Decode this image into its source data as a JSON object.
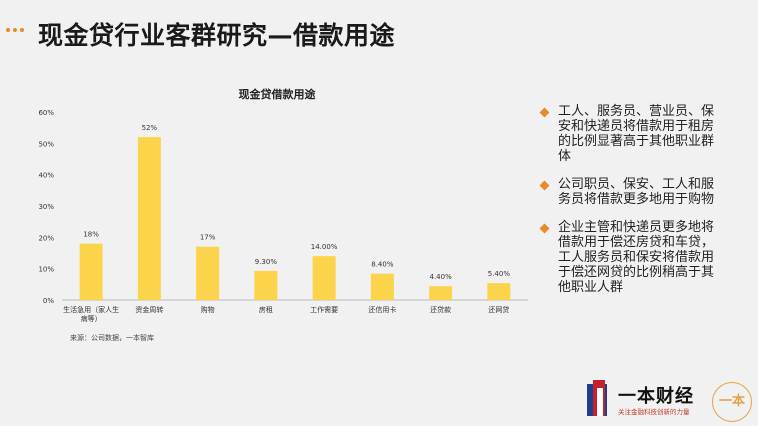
{
  "header": {
    "title": "现金贷行业客群研究—借款用途",
    "dots_color": "#e8892b"
  },
  "chart_data": {
    "type": "bar",
    "title": "现金贷借款用途",
    "categories": [
      "生活急用（家人生病等）",
      "资金周转",
      "购物",
      "房租",
      "工作需要",
      "还信用卡",
      "还贷款",
      "还网贷"
    ],
    "values": [
      18,
      52,
      17,
      9.3,
      14.0,
      8.4,
      4.4,
      5.4
    ],
    "data_labels": [
      "18%",
      "52%",
      "17%",
      "9.30%",
      "14.00%",
      "8.40%",
      "4.40%",
      "5.40%"
    ],
    "ylim": [
      0,
      60
    ],
    "yticks": [
      "0%",
      "10%",
      "20%",
      "30%",
      "40%",
      "50%",
      "60%"
    ],
    "bar_color": "#fcd44c",
    "grid": false,
    "source": "来源：公司数据，一本智库"
  },
  "bullets": [
    "工人、服务员、营业员、保安和快递员将借款用于租房的比例显著高于其他职业群体",
    "公司职员、保安、工人和服务员将借款更多地用于购物",
    "企业主管和快递员更多地将借款用于偿还房贷和车贷，工人服务员和保安将借款用于偿还网贷的比例稍高于其他职业人群"
  ],
  "logo": {
    "name": "一本财经",
    "slogan": "关注金融科技创新的力量",
    "seal_text": "一本"
  }
}
